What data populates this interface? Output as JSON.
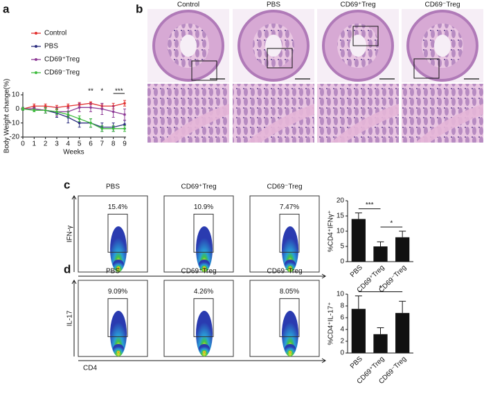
{
  "panel_labels": [
    "a",
    "b",
    "c",
    "d"
  ],
  "chart_data": [
    {
      "type": "line",
      "ylabel": "Body Weight change(%)",
      "xlabel": "Weeks",
      "x": [
        0,
        1,
        2,
        3,
        4,
        5,
        6,
        7,
        8,
        9
      ],
      "xlim": [
        0,
        9
      ],
      "xticks": [
        0,
        1,
        2,
        3,
        4,
        5,
        6,
        7,
        8,
        9
      ],
      "ylim": [
        -20,
        10
      ],
      "yticks": [
        -20,
        -10,
        0,
        10
      ],
      "series": [
        {
          "name": "Control",
          "color": "#e3302f",
          "values": [
            0,
            2,
            2,
            1,
            2,
            3,
            4,
            2,
            2,
            4
          ],
          "errors": [
            1,
            1.5,
            1.5,
            1.5,
            1.5,
            1.5,
            1,
            1.5,
            2,
            2
          ]
        },
        {
          "name": "PBS",
          "color": "#2b2d7e",
          "values": [
            0,
            0,
            -1,
            -3,
            -6,
            -10,
            -10,
            -13,
            -13,
            -11
          ],
          "errors": [
            1,
            1,
            2,
            3,
            4,
            3,
            3,
            3,
            3,
            3
          ]
        },
        {
          "name": "CD69⁺Treg",
          "color": "#8e3b96",
          "values": [
            0,
            0,
            -1,
            -2,
            -2,
            1,
            1,
            0,
            -2,
            -4
          ],
          "errors": [
            1,
            1,
            2,
            3,
            3,
            3,
            3,
            4,
            4,
            4
          ]
        },
        {
          "name": "CD69⁻Treg",
          "color": "#3dbb3d",
          "values": [
            0,
            -1,
            -1,
            -2,
            -4,
            -7,
            -10,
            -14,
            -14,
            -14
          ],
          "errors": [
            1,
            1,
            2,
            2,
            2,
            2,
            3,
            2,
            2,
            2
          ]
        }
      ],
      "annotations": [
        {
          "text": "**",
          "x": 6
        },
        {
          "text": "*",
          "x": 7
        },
        {
          "text": "***",
          "x": [
            8,
            9
          ]
        }
      ]
    },
    {
      "type": "bar",
      "ylabel": "%CD4⁺IFNγ⁺",
      "categories": [
        "PBS",
        "CD69⁺Treg",
        "CD69⁻Treg"
      ],
      "values": [
        14,
        5,
        8
      ],
      "errors": [
        2,
        1.5,
        2
      ],
      "color": "#111111",
      "ylim": [
        0,
        20
      ],
      "yticks": [
        0,
        5,
        10,
        15,
        20
      ],
      "comparisons": [
        {
          "text": "***",
          "between": [
            0,
            1
          ]
        },
        {
          "text": "*",
          "between": [
            1,
            2
          ]
        }
      ]
    },
    {
      "type": "bar",
      "ylabel": "%CD4⁺IL-17⁺",
      "categories": [
        "PBS",
        "CD69⁺Treg",
        "CD69⁻Treg"
      ],
      "values": [
        7.5,
        3.2,
        6.8
      ],
      "errors": [
        2.2,
        1.1,
        2
      ],
      "color": "#111111",
      "ylim": [
        0,
        10
      ],
      "yticks": [
        0,
        2,
        4,
        6,
        8,
        10
      ],
      "comparisons": [
        {
          "text": "*",
          "between": [
            0,
            2
          ]
        }
      ]
    }
  ],
  "histology": {
    "labels": [
      "Control",
      "PBS",
      "CD69⁺Treg",
      "CD69⁻Treg"
    ]
  },
  "flow_c": {
    "ylabel": "IFN-γ",
    "xlabel": "CD4",
    "plots": [
      {
        "title": "PBS",
        "gate": "15.4%"
      },
      {
        "title": "CD69⁺Treg",
        "gate": "10.9%"
      },
      {
        "title": "CD69⁻Treg",
        "gate": "7.47%"
      }
    ]
  },
  "flow_d": {
    "ylabel": "IL-17",
    "xlabel": "CD4",
    "plots": [
      {
        "title": "PBS",
        "gate": "9.09%"
      },
      {
        "title": "CD69⁺Treg",
        "gate": "4.26%"
      },
      {
        "title": "CD69⁻Treg",
        "gate": "8.05%"
      }
    ]
  }
}
